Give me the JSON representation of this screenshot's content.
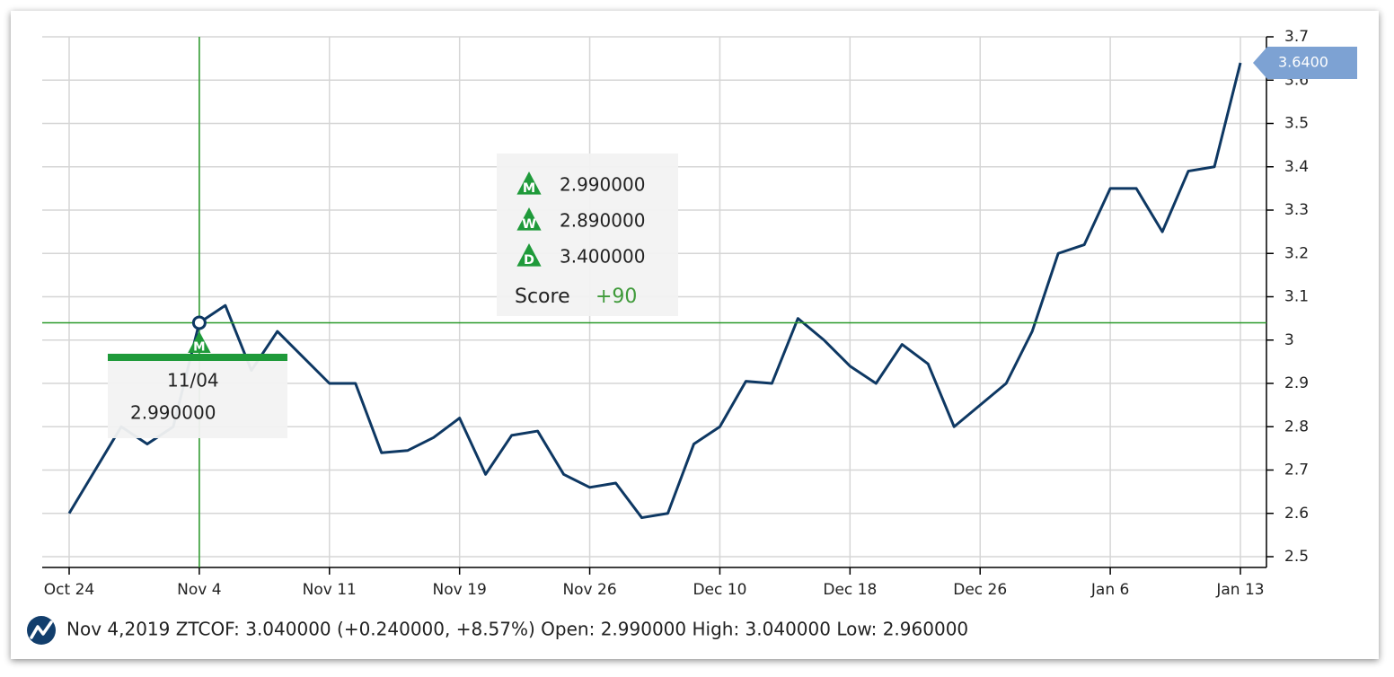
{
  "chart_data": {
    "type": "line",
    "categories": [
      "Oct 24",
      null,
      null,
      null,
      null,
      "Nov 4",
      null,
      null,
      null,
      null,
      "Nov 11",
      null,
      null,
      null,
      null,
      "Nov 19",
      null,
      null,
      null,
      null,
      "Nov 26",
      null,
      null,
      null,
      null,
      "Dec 10",
      null,
      null,
      null,
      null,
      "Dec 18",
      null,
      null,
      null,
      null,
      "Dec 26",
      null,
      null,
      null,
      null,
      "Jan 6",
      null,
      null,
      null,
      null,
      "Jan 13"
    ],
    "series": [
      {
        "name": "ZTCOF",
        "color": "#0e3863",
        "values": [
          2.6,
          2.7,
          2.8,
          2.76,
          2.8,
          3.04,
          3.08,
          2.93,
          3.02,
          2.96,
          2.9,
          2.9,
          2.74,
          2.745,
          2.775,
          2.82,
          2.69,
          2.78,
          2.79,
          2.69,
          2.66,
          2.67,
          2.59,
          2.6,
          2.76,
          2.8,
          2.905,
          2.9,
          3.05,
          3.0,
          2.94,
          2.9,
          2.99,
          2.945,
          2.8,
          2.85,
          2.9,
          3.02,
          3.2,
          3.22,
          3.35,
          3.35,
          3.25,
          3.39,
          3.4,
          3.64
        ]
      }
    ],
    "last_price_label": "3.6400",
    "ylim": [
      2.5,
      3.7
    ],
    "yticks": [
      2.5,
      2.6,
      2.7,
      2.8,
      2.9,
      3,
      3.1,
      3.2,
      3.3,
      3.4,
      3.5,
      3.6,
      3.7
    ],
    "grid": true,
    "crosshair": {
      "index": 5,
      "value": 3.04,
      "color": "#2a9a2a"
    },
    "tooltip": {
      "icon": "M",
      "date": "11/04",
      "value": "2.990000"
    },
    "score_box": {
      "entries": [
        {
          "icon": "M",
          "value": "2.990000"
        },
        {
          "icon": "W",
          "value": "2.890000"
        },
        {
          "icon": "D",
          "value": "3.400000"
        }
      ],
      "label": "Score",
      "score": "+90"
    },
    "footer": "Nov 4,2019 ZTCOF: 3.040000 (+0.240000, +8.57%) Open: 2.990000 High: 3.040000 Low: 2.960000"
  }
}
